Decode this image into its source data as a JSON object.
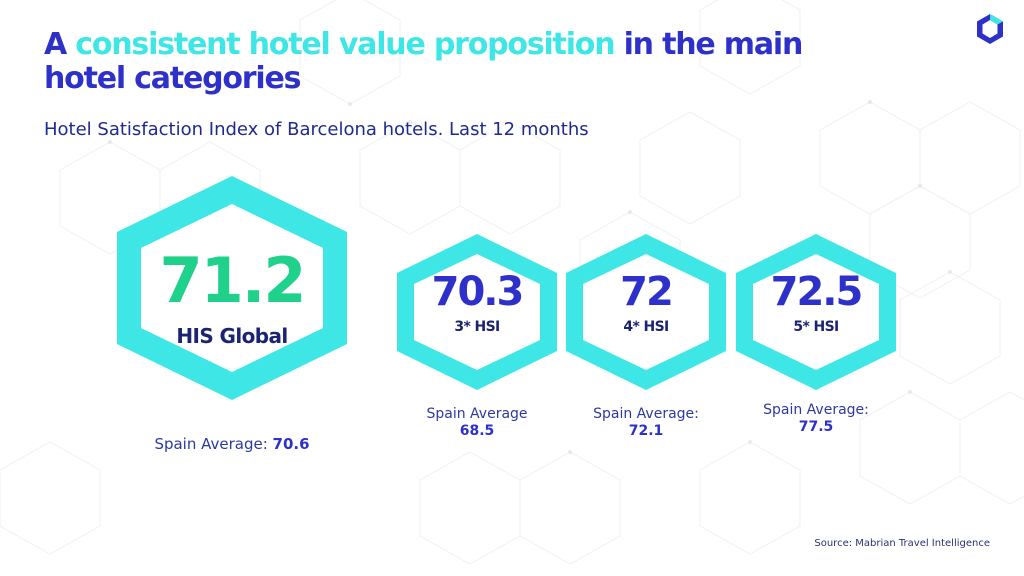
{
  "title": {
    "prefix": "A ",
    "highlight": "consistent hotel value proposition",
    "suffix_line1": " in the main",
    "suffix_line2": "hotel categories"
  },
  "subtitle": "Hotel Satisfaction Index of Barcelona hotels. Last 12 months",
  "metrics": [
    {
      "value": "71.2",
      "label": "HIS Global",
      "avg_label": "Spain Average:",
      "avg_value": "70.6"
    },
    {
      "value": "70.3",
      "label": "3* HSI",
      "avg_label": "Spain Average",
      "avg_value": "68.5"
    },
    {
      "value": "72",
      "label": "4* HSI",
      "avg_label": "Spain Average:",
      "avg_value": "72.1"
    },
    {
      "value": "72.5",
      "label": "5* HSI",
      "avg_label": "Spain Average:",
      "avg_value": "77.5"
    }
  ],
  "source": "Source: Mabrian Travel Intelligence",
  "colors": {
    "primary_blue": "#2d31c9",
    "cyan": "#3ee6e6",
    "green": "#1fd18a",
    "dark_navy": "#1c2370"
  },
  "icons": {
    "logo": "hexagon-logo-icon"
  }
}
